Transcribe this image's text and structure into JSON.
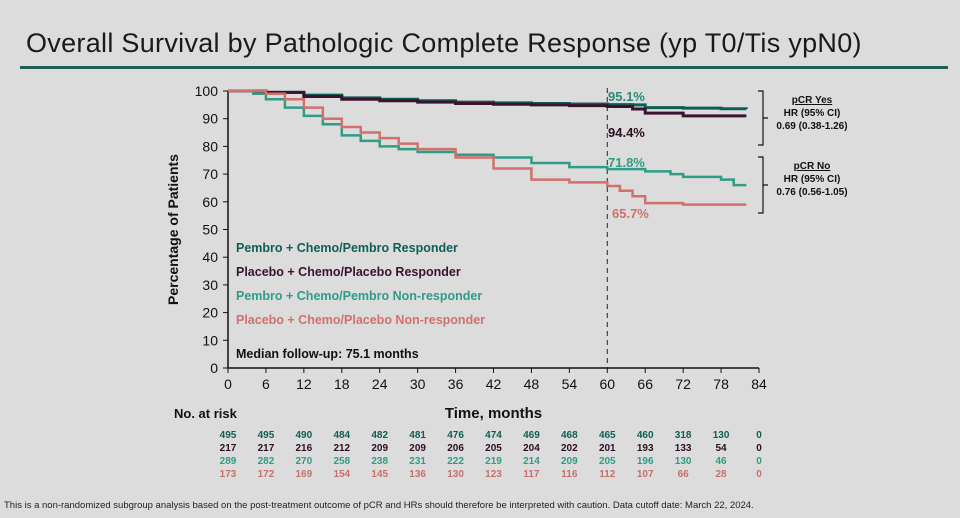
{
  "title": "Overall Survival by Pathologic Complete Response (yp T0/Tis ypN0)",
  "footnote": "This is a non-randomized subgroup analysis based on the post-treatment outcome of pCR and HRs should therefore be interpreted with caution. Data cutoff date: March 22, 2024.",
  "chart_data": {
    "type": "line",
    "xlabel": "Time, months",
    "ylabel": "Percentage of Patients",
    "xlim": [
      0,
      84
    ],
    "ylim": [
      0,
      100
    ],
    "xticks": [
      0,
      6,
      12,
      18,
      24,
      30,
      36,
      42,
      48,
      54,
      60,
      66,
      72,
      78,
      84
    ],
    "yticks": [
      0,
      10,
      20,
      30,
      40,
      50,
      60,
      70,
      80,
      90,
      100
    ],
    "reference_line_x": 60,
    "median_followup": "Median follow-up: 75.1 months",
    "series": [
      {
        "name": "Pembro + Chemo/Pembro Responder",
        "color": "#0f5e55",
        "x": [
          0,
          6,
          12,
          18,
          24,
          30,
          36,
          42,
          48,
          54,
          60,
          64,
          66,
          72,
          78,
          82
        ],
        "y": [
          100,
          99.5,
          98.5,
          97.5,
          97,
          96.5,
          96,
          95.7,
          95.5,
          95.3,
          95.1,
          95,
          94,
          93.8,
          93.6,
          93.5
        ],
        "label": "95.1%"
      },
      {
        "name": "Placebo + Chemo/Placebo Responder",
        "color": "#3b1230",
        "x": [
          0,
          6,
          12,
          18,
          24,
          30,
          36,
          42,
          48,
          54,
          60,
          64,
          66,
          72,
          78,
          82
        ],
        "y": [
          100,
          99.5,
          98,
          97,
          96.5,
          96,
          95.5,
          95.2,
          95,
          94.7,
          94.4,
          93.5,
          92,
          91,
          91,
          91
        ],
        "label": "94.4%"
      },
      {
        "name": "Pembro + Chemo/Pembro Non-responder",
        "color": "#2f9c86",
        "x": [
          0,
          4,
          6,
          9,
          12,
          15,
          18,
          21,
          24,
          27,
          30,
          36,
          42,
          48,
          54,
          60,
          66,
          70,
          72,
          78,
          80,
          82
        ],
        "y": [
          100,
          99,
          97,
          94,
          91,
          88,
          84,
          82,
          80,
          79,
          78,
          77,
          76,
          74,
          72.5,
          71.8,
          71,
          70,
          69,
          68,
          66,
          66
        ],
        "label": "71.8%"
      },
      {
        "name": "Placebo + Chemo/Placebo Non-responder",
        "color": "#d2706c",
        "x": [
          0,
          6,
          9,
          12,
          15,
          18,
          21,
          24,
          27,
          30,
          36,
          42,
          48,
          54,
          60,
          62,
          64,
          66,
          72,
          78,
          82
        ],
        "y": [
          100,
          99,
          97,
          94,
          90,
          87,
          85,
          83,
          81,
          79,
          76,
          72,
          68,
          67,
          65.7,
          64,
          62,
          59.5,
          59,
          59,
          59
        ],
        "label": "65.7%"
      }
    ],
    "hr_annotations": [
      {
        "group": "pCR Yes",
        "label": "HR (95% CI)",
        "value": "0.69 (0.38-1.26)"
      },
      {
        "group": "pCR No",
        "label": "HR (95% CI)",
        "value": "0.76 (0.56-1.05)"
      }
    ],
    "risk_table": {
      "title": "No. at risk",
      "rows": [
        [
          495,
          495,
          490,
          484,
          482,
          481,
          476,
          474,
          469,
          468,
          465,
          460,
          318,
          130,
          0
        ],
        [
          217,
          217,
          216,
          212,
          209,
          209,
          206,
          205,
          204,
          202,
          201,
          193,
          133,
          54,
          0
        ],
        [
          289,
          282,
          270,
          258,
          238,
          231,
          222,
          219,
          214,
          209,
          205,
          196,
          130,
          46,
          0
        ],
        [
          173,
          172,
          169,
          154,
          145,
          136,
          130,
          123,
          117,
          116,
          112,
          107,
          66,
          28,
          0
        ]
      ]
    }
  }
}
